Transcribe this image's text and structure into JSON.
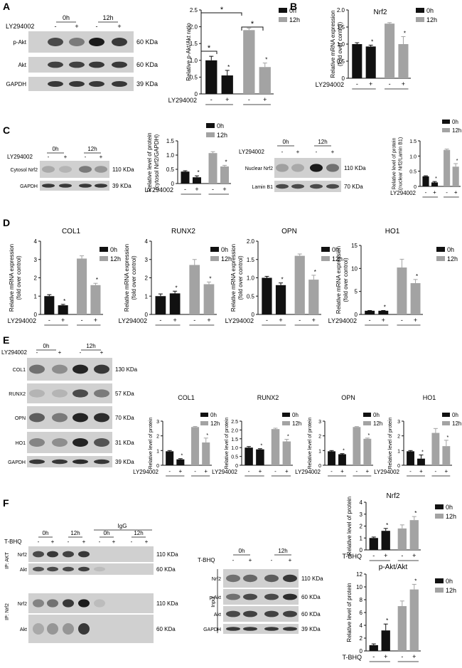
{
  "panels": [
    "A",
    "B",
    "C",
    "D",
    "E",
    "F"
  ],
  "common": {
    "legend": [
      "0h",
      "12h"
    ],
    "treatment_label": "LY294002",
    "tbhq_label": "T-BHQ",
    "minus": "-",
    "plus": "+",
    "star": "*",
    "colors": {
      "h0": "#111111",
      "h12": "#a3a3a3",
      "blot_bg": "#d0d0d0"
    }
  },
  "blots": {
    "A": {
      "time_labels": [
        "0h",
        "12h"
      ],
      "rows": [
        {
          "name": "p-Akt",
          "size": "60 KDa"
        },
        {
          "name": "Akt",
          "size": "60 KDa"
        },
        {
          "name": "GAPDH",
          "size": "39 KDa"
        }
      ]
    },
    "C_left": {
      "time_labels": [
        "0h",
        "12h"
      ],
      "rows": [
        {
          "name": "Cytosol Nrf2",
          "size": "110 KDa"
        },
        {
          "name": "GAPDH",
          "size": "39 KDa"
        }
      ]
    },
    "C_right": {
      "time_labels": [
        "0h",
        "12h"
      ],
      "rows": [
        {
          "name": "Nuclear Nrf2",
          "size": "110 KDa"
        },
        {
          "name": "Lamin B1",
          "size": "70 KDa"
        }
      ]
    },
    "E": {
      "time_labels": [
        "0h",
        "12h"
      ],
      "rows": [
        {
          "name": "COL1",
          "size": "130 KDa"
        },
        {
          "name": "RUNX2",
          "size": "57 KDa"
        },
        {
          "name": "OPN",
          "size": "70 KDa"
        },
        {
          "name": "HO1",
          "size": "31 KDa"
        },
        {
          "name": "GAPDH",
          "size": "39 KDa"
        }
      ]
    },
    "F_ip": {
      "time_labels": [
        "0h",
        "12h",
        "0h",
        "12h"
      ],
      "igg_label": "IgG",
      "ip_akt": "IP: AKT",
      "ip_nrf2": "IP: Nrf2",
      "rows": [
        {
          "name": "Nrf2",
          "size": "110 KDa"
        },
        {
          "name": "Akt",
          "size": "60 KDa"
        },
        {
          "name": "Nrf2",
          "size": "110 KDa"
        },
        {
          "name": "Akt",
          "size": "60 KDa"
        }
      ]
    },
    "F_input": {
      "time_labels": [
        "0h",
        "12h"
      ],
      "input_label": "Input",
      "rows": [
        {
          "name": "Nrf2",
          "size": "110 KDa"
        },
        {
          "name": "p-Akt",
          "size": "60 KDa"
        },
        {
          "name": "Akt",
          "size": "60 KDa"
        },
        {
          "name": "GAPDH",
          "size": "39 KDa"
        }
      ]
    }
  },
  "chart_data": [
    {
      "id": "A",
      "type": "bar",
      "title": "",
      "ylabel": "Relative p-Akt/Akt ratio",
      "xlabel": "LY294002",
      "categories": [
        "-",
        "+",
        "-",
        "+"
      ],
      "series": [
        {
          "name": "0h",
          "values": [
            1.0,
            0.55,
            null,
            null
          ]
        },
        {
          "name": "12h",
          "values": [
            null,
            null,
            1.9,
            0.8
          ]
        }
      ],
      "errors": [
        0.12,
        0.15,
        0.06,
        0.12
      ],
      "ylim": [
        0,
        2.5
      ],
      "yticks": [
        0,
        0.5,
        1.0,
        1.5,
        2.0,
        2.5
      ],
      "ytick_labels": [
        "0",
        "0.5",
        "1.0",
        "1.5",
        "2.0",
        "2.5"
      ]
    },
    {
      "id": "B",
      "type": "bar",
      "title": "Nrf2",
      "ylabel": "Relative mRNA expression (fold over control)",
      "xlabel": "LY294002",
      "categories": [
        "-",
        "+",
        "-",
        "+"
      ],
      "series": [
        {
          "name": "0h",
          "values": [
            1.0,
            0.93,
            null,
            null
          ]
        },
        {
          "name": "12h",
          "values": [
            null,
            null,
            1.6,
            1.0
          ]
        }
      ],
      "errors": [
        0.04,
        0.04,
        0.03,
        0.22
      ],
      "ylim": [
        0,
        2.0
      ],
      "yticks": [
        0,
        0.5,
        1.0,
        1.5,
        2.0
      ],
      "ytick_labels": [
        "0",
        "0.5",
        "1.0",
        "1.5",
        "2.0"
      ]
    },
    {
      "id": "C1",
      "type": "bar",
      "title": "",
      "ylabel": "Relative level of protein (cytosol Nrf2/GAPDH)",
      "xlabel": "LY294002",
      "categories": [
        "-",
        "+",
        "-",
        "+"
      ],
      "series": [
        {
          "name": "0h",
          "values": [
            0.42,
            0.22,
            null,
            null
          ]
        },
        {
          "name": "12h",
          "values": [
            null,
            null,
            1.07,
            0.6
          ]
        }
      ],
      "errors": [
        0.03,
        0.05,
        0.05,
        0.04
      ],
      "ylim": [
        0,
        1.5
      ],
      "yticks": [
        0,
        0.5,
        1.0,
        1.5
      ],
      "ytick_labels": [
        "0",
        "0.5",
        "1.0",
        "1.5"
      ]
    },
    {
      "id": "C2",
      "type": "bar",
      "title": "",
      "ylabel": "Relative level of protein (nuclear Nrf2/Lamin B1)",
      "xlabel": "LY294002",
      "categories": [
        "-",
        "+",
        "-",
        "+"
      ],
      "series": [
        {
          "name": "0h",
          "values": [
            0.33,
            0.13,
            null,
            null
          ]
        },
        {
          "name": "12h",
          "values": [
            null,
            null,
            1.2,
            0.65
          ]
        }
      ],
      "errors": [
        0.02,
        0.03,
        0.03,
        0.1
      ],
      "ylim": [
        0,
        1.5
      ],
      "yticks": [
        0,
        0.5,
        1.0,
        1.5
      ],
      "ytick_labels": [
        "0",
        "0.5",
        "1.0",
        "1.5"
      ]
    },
    {
      "id": "D1",
      "type": "bar",
      "title": "COL1",
      "ylabel": "Relative mRNA expression (fold over control)",
      "xlabel": "LY294002",
      "categories": [
        "-",
        "+",
        "-",
        "+"
      ],
      "series": [
        {
          "name": "0h",
          "values": [
            1.0,
            0.5,
            null,
            null
          ]
        },
        {
          "name": "12h",
          "values": [
            null,
            null,
            3.05,
            1.6
          ]
        }
      ],
      "errors": [
        0.08,
        0.05,
        0.15,
        0.1
      ],
      "ylim": [
        0,
        4
      ],
      "yticks": [
        0,
        1,
        2,
        3,
        4
      ],
      "ytick_labels": [
        "0",
        "1",
        "2",
        "3",
        "4"
      ]
    },
    {
      "id": "D2",
      "type": "bar",
      "title": "RUNX2",
      "ylabel": "Relative mRNA expression (fold over control)",
      "xlabel": "LY294002",
      "categories": [
        "-",
        "+",
        "-",
        "+"
      ],
      "series": [
        {
          "name": "0h",
          "values": [
            1.0,
            1.15,
            null,
            null
          ]
        },
        {
          "name": "12h",
          "values": [
            null,
            null,
            2.7,
            1.65
          ]
        }
      ],
      "errors": [
        0.12,
        0.12,
        0.3,
        0.12
      ],
      "ylim": [
        0,
        4
      ],
      "yticks": [
        0,
        1,
        2,
        3,
        4
      ],
      "ytick_labels": [
        "0",
        "1",
        "2",
        "3",
        "4"
      ]
    },
    {
      "id": "D3",
      "type": "bar",
      "title": "OPN",
      "ylabel": "Relative mRNA expression (fold over control)",
      "xlabel": "LY294002",
      "categories": [
        "-",
        "+",
        "-",
        "+"
      ],
      "series": [
        {
          "name": "0h",
          "values": [
            1.0,
            0.8,
            null,
            null
          ]
        },
        {
          "name": "12h",
          "values": [
            null,
            null,
            1.6,
            0.95
          ]
        }
      ],
      "errors": [
        0.04,
        0.06,
        0.05,
        0.12
      ],
      "ylim": [
        0,
        2.0
      ],
      "yticks": [
        0,
        0.5,
        1.0,
        1.5,
        2.0
      ],
      "ytick_labels": [
        "0",
        "0.5",
        "1.0",
        "1.5",
        "2.0"
      ]
    },
    {
      "id": "D4",
      "type": "bar",
      "title": "HO1",
      "ylabel": "Relative mRNA expression (fold over control)",
      "xlabel": "LY294002",
      "categories": [
        "-",
        "+",
        "-",
        "+"
      ],
      "series": [
        {
          "name": "0h",
          "values": [
            0.8,
            0.8,
            null,
            null
          ]
        },
        {
          "name": "12h",
          "values": [
            null,
            null,
            10.2,
            6.8
          ]
        }
      ],
      "errors": [
        0.05,
        0.05,
        1.8,
        0.8
      ],
      "ylim": [
        0,
        15
      ],
      "yticks": [
        0,
        5,
        10,
        15
      ],
      "ytick_labels": [
        "0",
        "5",
        "10",
        "15"
      ]
    },
    {
      "id": "E1",
      "type": "bar",
      "title": "COL1",
      "ylabel": "Relative level of protein",
      "xlabel": "LY294002",
      "categories": [
        "-",
        "+",
        "-",
        "+"
      ],
      "series": [
        {
          "name": "0h",
          "values": [
            0.95,
            0.4,
            null,
            null
          ]
        },
        {
          "name": "12h",
          "values": [
            null,
            null,
            2.6,
            1.55
          ]
        }
      ],
      "errors": [
        0.05,
        0.05,
        0.04,
        0.3
      ],
      "ylim": [
        0,
        3
      ],
      "yticks": [
        0,
        1,
        2,
        3
      ],
      "ytick_labels": [
        "0",
        "1",
        "2",
        "3"
      ]
    },
    {
      "id": "E2",
      "type": "bar",
      "title": "RUNX2",
      "ylabel": "Relative level of protein",
      "xlabel": "LY294002",
      "categories": [
        "-",
        "+",
        "-",
        "+"
      ],
      "series": [
        {
          "name": "0h",
          "values": [
            1.0,
            0.9,
            null,
            null
          ]
        },
        {
          "name": "12h",
          "values": [
            null,
            null,
            2.05,
            1.35
          ]
        }
      ],
      "errors": [
        0.06,
        0.04,
        0.05,
        0.12
      ],
      "ylim": [
        0,
        2.5
      ],
      "yticks": [
        0,
        0.5,
        1.0,
        1.5,
        2.0,
        2.5
      ],
      "ytick_labels": [
        "0",
        "0.5",
        "1.0",
        "1.5",
        "2.0",
        "2.5"
      ]
    },
    {
      "id": "E3",
      "type": "bar",
      "title": "OPN",
      "ylabel": "Relative level of protein",
      "xlabel": "LY294002",
      "categories": [
        "-",
        "+",
        "-",
        "+"
      ],
      "series": [
        {
          "name": "0h",
          "values": [
            0.95,
            0.75,
            null,
            null
          ]
        },
        {
          "name": "12h",
          "values": [
            null,
            null,
            2.6,
            1.8
          ]
        }
      ],
      "errors": [
        0.05,
        0.04,
        0.03,
        0.05
      ],
      "ylim": [
        0,
        3
      ],
      "yticks": [
        0,
        1,
        2,
        3
      ],
      "ytick_labels": [
        "0",
        "1",
        "2",
        "3"
      ]
    },
    {
      "id": "E4",
      "type": "bar",
      "title": "HO1",
      "ylabel": "Relative level of protein",
      "xlabel": "LY294002",
      "categories": [
        "-",
        "+",
        "-",
        "+"
      ],
      "series": [
        {
          "name": "0h",
          "values": [
            0.95,
            0.45,
            null,
            null
          ]
        },
        {
          "name": "12h",
          "values": [
            null,
            null,
            2.2,
            1.3
          ]
        }
      ],
      "errors": [
        0.05,
        0.25,
        0.3,
        0.4
      ],
      "ylim": [
        0,
        3
      ],
      "yticks": [
        0,
        1,
        2,
        3
      ],
      "ytick_labels": [
        "0",
        "1",
        "2",
        "3"
      ]
    },
    {
      "id": "F1",
      "type": "bar",
      "title": "Nrf2",
      "ylabel": "Relative level of protein",
      "xlabel": "T-BHQ",
      "categories": [
        "-",
        "+",
        "-",
        "+"
      ],
      "series": [
        {
          "name": "0h",
          "values": [
            1.0,
            1.6,
            null,
            null
          ]
        },
        {
          "name": "12h",
          "values": [
            null,
            null,
            1.8,
            2.5
          ]
        }
      ],
      "errors": [
        0.08,
        0.2,
        0.3,
        0.3
      ],
      "ylim": [
        0,
        4
      ],
      "yticks": [
        0,
        1,
        2,
        3,
        4
      ],
      "ytick_labels": [
        "0",
        "1",
        "2",
        "3",
        "4"
      ]
    },
    {
      "id": "F2",
      "type": "bar",
      "title": "p-Akt/Akt",
      "ylabel": "Relative level of protein",
      "xlabel": "T-BHQ",
      "categories": [
        "-",
        "+",
        "-",
        "+"
      ],
      "series": [
        {
          "name": "0h",
          "values": [
            0.9,
            3.2,
            null,
            null
          ]
        },
        {
          "name": "12h",
          "values": [
            null,
            null,
            7.0,
            9.6
          ]
        }
      ],
      "errors": [
        0.2,
        1.0,
        0.8,
        0.8
      ],
      "ylim": [
        0,
        12
      ],
      "yticks": [
        0,
        2,
        4,
        6,
        8,
        10,
        12
      ],
      "ytick_labels": [
        "0",
        "2",
        "4",
        "6",
        "8",
        "10",
        "12"
      ]
    }
  ]
}
